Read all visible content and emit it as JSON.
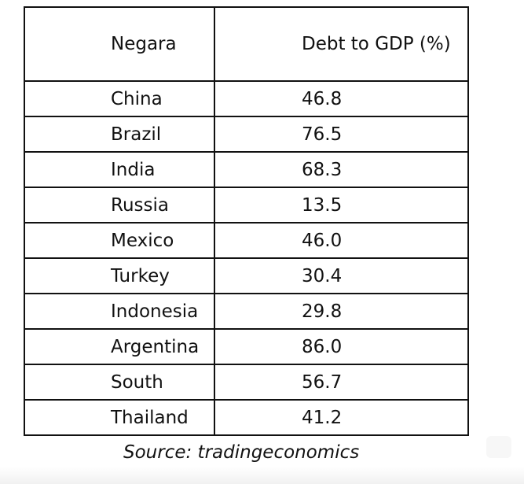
{
  "chart_data": {
    "type": "table",
    "columns": [
      "Negara",
      "Debt to GDP (%)"
    ],
    "rows": [
      {
        "country": "China",
        "value": "46.8"
      },
      {
        "country": "Brazil",
        "value": "76.5"
      },
      {
        "country": "India",
        "value": "68.3"
      },
      {
        "country": "Russia",
        "value": "13.5"
      },
      {
        "country": "Mexico",
        "value": "46.0"
      },
      {
        "country": "Turkey",
        "value": "30.4"
      },
      {
        "country": "Indonesia",
        "value": "29.8"
      },
      {
        "country": "Argentina",
        "value": "86.0"
      },
      {
        "country": "South",
        "value": "56.7"
      },
      {
        "country": "Thailand",
        "value": "41.2"
      }
    ],
    "source": "Source: tradingeconomics"
  }
}
